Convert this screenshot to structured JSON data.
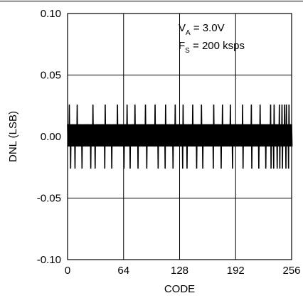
{
  "chart_data": {
    "type": "line",
    "xlabel": "CODE",
    "ylabel": "DNL (LSB)",
    "xlim": [
      0,
      256
    ],
    "ylim": [
      -0.1,
      0.1
    ],
    "x_ticks": [
      "0",
      "64",
      "128",
      "192",
      "256"
    ],
    "y_ticks": [
      "0.10",
      "0.05",
      "0.00",
      "-0.05",
      "-0.10"
    ],
    "grid": true,
    "annotations": [
      {
        "main": "V",
        "sub": "A",
        "rest": " = 3.0V"
      },
      {
        "main": "F",
        "sub": "S",
        "rest": " = 200 ksps"
      }
    ],
    "band": {
      "lower": -0.008,
      "upper": 0.01
    },
    "spikes_up": [
      2,
      11,
      29,
      43,
      57,
      68,
      77,
      89,
      100,
      112,
      123,
      132,
      143,
      153,
      167,
      177,
      186,
      200,
      210,
      220,
      232,
      236,
      242,
      245,
      248,
      250,
      253
    ],
    "spikes_down": [
      3,
      8,
      16,
      26,
      31,
      42,
      50,
      64,
      71,
      80,
      90,
      103,
      111,
      120,
      131,
      136,
      147,
      154,
      166,
      175,
      188,
      200,
      210,
      218,
      226,
      232,
      235,
      239,
      242,
      245,
      249,
      252
    ],
    "spike_value_up": 0.026,
    "spike_value_down": -0.026,
    "line_color": "#000000"
  }
}
